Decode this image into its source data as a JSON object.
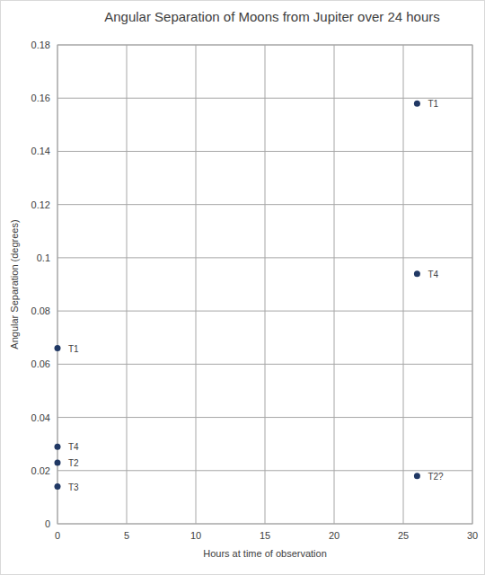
{
  "chart_data": {
    "type": "scatter",
    "title": "Angular Separation of Moons from Jupiter over 24 hours",
    "x_label": "Hours at time of observation",
    "y_label": "Angular Separation (degrees)",
    "series": [
      {
        "color": "#203864",
        "marker": "circle",
        "x": [
          0,
          0,
          0,
          0,
          26,
          26,
          26
        ],
        "values": [
          0.066,
          0.029,
          0.023,
          0.014,
          0.158,
          0.094,
          0.018
        ],
        "labels": [
          "T1",
          "T4",
          "T2",
          "T3",
          "T1",
          "T4",
          "T2?"
        ]
      }
    ],
    "xlim": [
      0,
      30
    ],
    "xticks": [
      0,
      5,
      10,
      15,
      20,
      25,
      30
    ],
    "ylim": [
      0,
      0.18
    ],
    "yticks": [
      0,
      0.02,
      0.04,
      0.06,
      0.08,
      0.1,
      0.12,
      0.14,
      0.16,
      0.18
    ],
    "grid": true
  }
}
